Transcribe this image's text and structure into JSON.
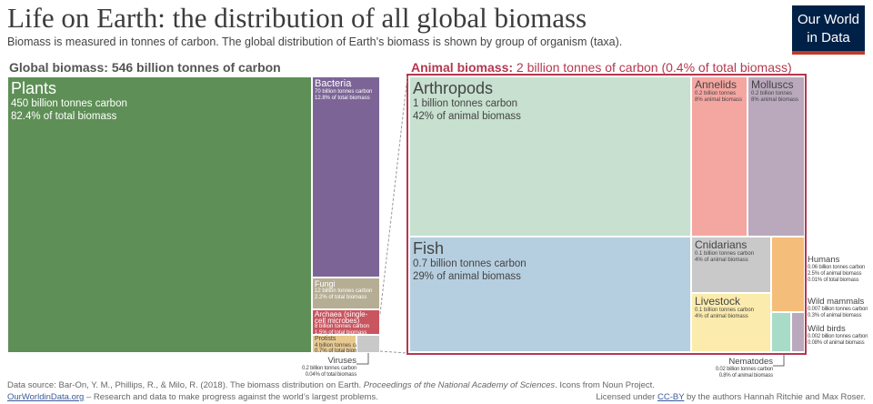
{
  "header": {
    "title": "Life on Earth: the distribution of all global biomass",
    "subtitle": "Biomass is measured in tonnes of carbon. The global distribution of Earth’s biomass is shown by group of organism (taxa).",
    "logo": [
      "Our World",
      "in Data"
    ]
  },
  "chart_data": {
    "type": "treemap",
    "colors": {
      "plants": "#5e8f56",
      "bacteria": "#7c6596",
      "fungi": "#b6ad95",
      "archaea": "#c9555f",
      "protists": "#e8c990",
      "arthropods": "#c7e0cf",
      "fish": "#b6cfe0",
      "annelids": "#f4a6a1",
      "molluscs": "#baa9bd",
      "cnidarians": "#c9c9c9",
      "livestock": "#fbebad",
      "humans": "#f5bd7a",
      "nematodes": "#a8dcc8",
      "frame": "#b5384f"
    },
    "global": {
      "label": "Global biomass:",
      "value": "546 billion tonnes of carbon",
      "groups": [
        {
          "name": "Plants",
          "value": "450 billion tonnes carbon",
          "share": "82.4% of total biomass"
        },
        {
          "name": "Bacteria",
          "value": "70 billion tonnes carbon",
          "share": "12.8% of total biomass"
        },
        {
          "name": "Fungi",
          "value": "12 billion tonnes carbon",
          "share": "2.2% of total biomass"
        },
        {
          "name": "Archaea (single-cell microbes)",
          "value": "8 billion tonnes carbon",
          "share": "1.5% of total biomass"
        },
        {
          "name": "Protists",
          "value": "4 billion tonnes carbon",
          "share": "0.7% of total biomass"
        },
        {
          "name": "Viruses",
          "value": "0.2 billion tonnes carbon",
          "share": "0.04% of total biomass"
        }
      ]
    },
    "animal": {
      "label": "Animal biomass:",
      "value": "2 billion tonnes of carbon (0.4% of total biomass)",
      "groups": [
        {
          "name": "Arthropods",
          "value": "1 billion tonnes carbon",
          "share": "42% of animal biomass"
        },
        {
          "name": "Fish",
          "value": "0.7 billion tonnes carbon",
          "share": "29% of animal biomass"
        },
        {
          "name": "Annelids",
          "value": "0.2 billion tonnes",
          "share": "8% animal biomass"
        },
        {
          "name": "Molluscs",
          "value": "0.2 billion tonnes",
          "share": "8% animal biomass"
        },
        {
          "name": "Cnidarians",
          "value": "0.1 billion tonnes carbon",
          "share": "4% of animal biomass"
        },
        {
          "name": "Livestock",
          "value": "0.1 billion tonnes carbon",
          "share": "4% of animal biomass"
        },
        {
          "name": "Humans",
          "value": "0.06 billion tonnes carbon",
          "share": "2.5% of animal biomass",
          "share2": "0.01% of total biomass"
        },
        {
          "name": "Wild mammals",
          "value": "0.007 billion tonnes carbon",
          "share": "0.3% of animal biomass"
        },
        {
          "name": "Wild birds",
          "value": "0.002 billion tonnes carbon",
          "share": "0.08% of animal biomass"
        },
        {
          "name": "Nematodes",
          "value": "0.02 billion tonnes carbon",
          "share": "0.8% of animal biomass"
        }
      ]
    }
  },
  "footer": {
    "source_a": "Data source: Bar-On, Y. M., Phillips, R., & Milo, R. (2018). The biomass distribution on Earth. ",
    "source_journal": "Proceedings of the National Academy of Sciences",
    "source_b": ". Icons from Noun Project.",
    "site": "OurWorldinData.org",
    "site_tail": " – Research and data to make progress against the world’s largest problems.",
    "license_a": "Licensed under ",
    "license_link": "CC-BY",
    "license_b": " by the authors Hannah Ritchie and Max Roser."
  }
}
